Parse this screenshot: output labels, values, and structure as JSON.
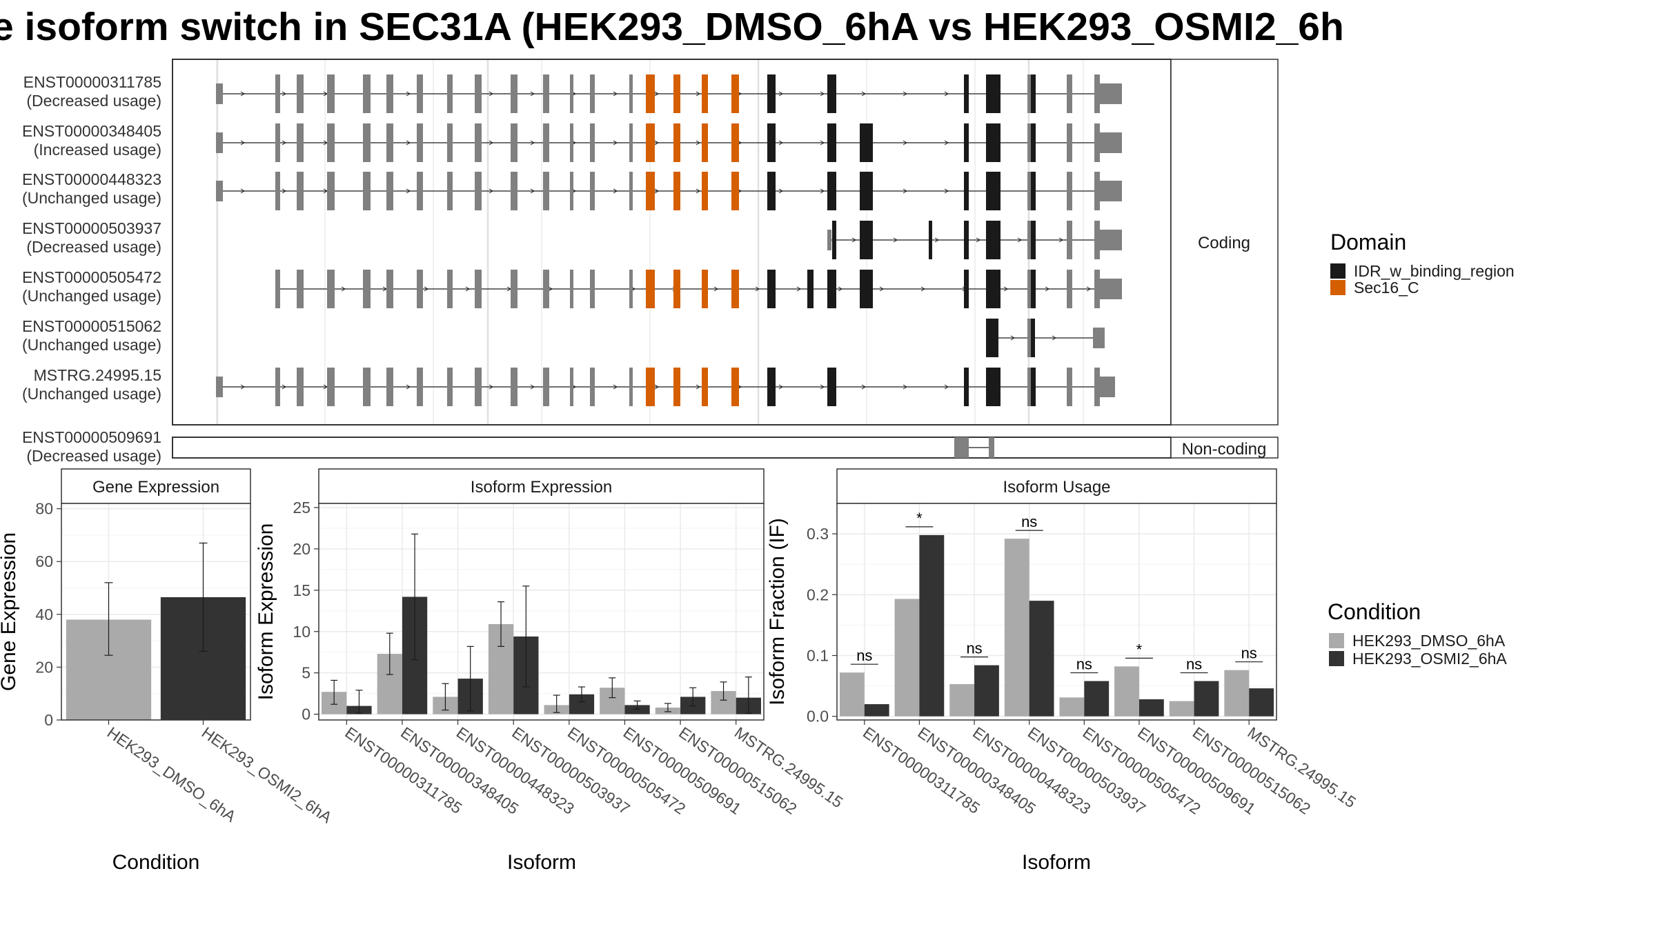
{
  "title": "e isoform switch in SEC31A (HEK293_DMSO_6hA vs HEK293_OSMI2_6h",
  "structure": {
    "coding_label": "Coding",
    "noncoding_label": "Non-coding",
    "coding_isoforms": [
      {
        "id": "ENST00000311785",
        "usage": "(Decreased usage)"
      },
      {
        "id": "ENST00000348405",
        "usage": "(Increased usage)"
      },
      {
        "id": "ENST00000448323",
        "usage": "(Unchanged usage)"
      },
      {
        "id": "ENST00000503937",
        "usage": "(Decreased usage)"
      },
      {
        "id": "ENST00000505472",
        "usage": "(Unchanged usage)"
      },
      {
        "id": "ENST00000515062",
        "usage": "(Unchanged usage)"
      },
      {
        "id": "MSTRG.24995.15",
        "usage": "(Unchanged usage)"
      }
    ],
    "noncoding_isoforms": [
      {
        "id": "ENST00000509691",
        "usage": "(Decreased usage)"
      }
    ]
  },
  "legend_domain": {
    "title": "Domain",
    "items": [
      {
        "label": "IDR_w_binding_region",
        "color": "#1a1a1a"
      },
      {
        "label": "Sec16_C",
        "color": "#d55e00"
      }
    ]
  },
  "legend_condition": {
    "title": "Condition",
    "items": [
      {
        "label": "HEK293_DMSO_6hA",
        "color": "#aaaaaa"
      },
      {
        "label": "HEK293_OSMI2_6hA",
        "color": "#333333"
      }
    ]
  },
  "colors": {
    "utr": "#808080",
    "cds": "#808080",
    "idr": "#1a1a1a",
    "sec16": "#d55e00",
    "panel_border": "#333333",
    "grid": "#ebebeb"
  },
  "chart_data": [
    {
      "type": "bar",
      "title": "Gene Expression",
      "xlabel": "Condition",
      "ylabel": "Gene Expression",
      "categories": [
        "HEK293_DMSO_6hA",
        "HEK293_OSMI2_6hA"
      ],
      "values": [
        38,
        46.5
      ],
      "error_low": [
        24.5,
        26
      ],
      "error_high": [
        52,
        67
      ],
      "ylim": [
        0,
        82
      ],
      "yticks": [
        0,
        20,
        40,
        60,
        80
      ]
    },
    {
      "type": "bar",
      "title": "Isoform Expression",
      "xlabel": "Isoform",
      "ylabel": "Isoform Expression",
      "categories": [
        "ENST00000311785",
        "ENST00000348405",
        "ENST00000448323",
        "ENST00000503937",
        "ENST00000505472",
        "ENST00000509691",
        "ENST00000515062",
        "MSTRG.24995.15"
      ],
      "series": [
        {
          "name": "HEK293_DMSO_6hA",
          "values": [
            2.7,
            7.3,
            2.1,
            10.9,
            1.1,
            3.2,
            0.8,
            2.8
          ],
          "error_low": [
            1.2,
            4.8,
            0.5,
            8.2,
            0.2,
            2.0,
            0.3,
            1.7
          ],
          "error_high": [
            4.1,
            9.8,
            3.7,
            13.6,
            2.3,
            4.4,
            1.3,
            3.9
          ]
        },
        {
          "name": "HEK293_OSMI2_6hA",
          "values": [
            1.0,
            14.2,
            4.3,
            9.4,
            2.4,
            1.1,
            2.1,
            2.0
          ],
          "error_low": [
            0.1,
            6.6,
            0.4,
            3.3,
            1.5,
            0.6,
            1.0,
            0.1
          ],
          "error_high": [
            2.9,
            21.8,
            8.2,
            15.5,
            3.3,
            1.6,
            3.2,
            4.5
          ]
        }
      ],
      "ylim": [
        -0.7,
        25.5
      ],
      "yticks": [
        0,
        5,
        10,
        15,
        20,
        25
      ]
    },
    {
      "type": "bar",
      "title": "Isoform Usage",
      "xlabel": "Isoform",
      "ylabel": "Isoform Fraction (IF)",
      "categories": [
        "ENST00000311785",
        "ENST00000348405",
        "ENST00000448323",
        "ENST00000503937",
        "ENST00000505472",
        "ENST00000509691",
        "ENST00000515062",
        "MSTRG.24995.15"
      ],
      "series": [
        {
          "name": "HEK293_DMSO_6hA",
          "values": [
            0.072,
            0.193,
            0.053,
            0.292,
            0.031,
            0.082,
            0.025,
            0.076
          ]
        },
        {
          "name": "HEK293_OSMI2_6hA",
          "values": [
            0.02,
            0.298,
            0.084,
            0.19,
            0.058,
            0.028,
            0.058,
            0.046
          ]
        }
      ],
      "significance": [
        "ns",
        "*",
        "ns",
        "ns",
        "ns",
        "*",
        "ns",
        "ns"
      ],
      "ylim": [
        -0.006,
        0.35
      ],
      "yticks": [
        0.0,
        0.1,
        0.2,
        0.3
      ],
      "ytick_labels": [
        "0.0",
        "0.1",
        "0.2",
        "0.3"
      ]
    }
  ]
}
